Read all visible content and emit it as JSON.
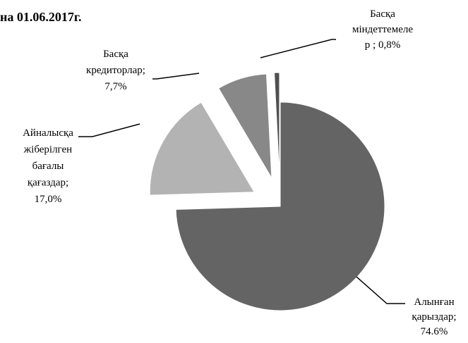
{
  "chart_data": {
    "type": "pie",
    "title": "на 01.06.2017г.",
    "slices": [
      {
        "label_lines": [
          "Алынған",
          "қарыздар;",
          "74.6%"
        ],
        "value": 74.6,
        "color": "#646464"
      },
      {
        "label_lines": [
          "Айналысқа",
          "жіберілген",
          "бағалы",
          "қағаздар;",
          "17,0%"
        ],
        "value": 17.0,
        "color": "#b3b3b3"
      },
      {
        "label_lines": [
          "Басқа",
          "кредиторлар;",
          "7,7%"
        ],
        "value": 7.7,
        "color": "#888888"
      },
      {
        "label_lines": [
          "Басқа",
          "міндеттемеле",
          "р ; 0,8%"
        ],
        "value": 0.8,
        "color": "#505050"
      }
    ]
  }
}
